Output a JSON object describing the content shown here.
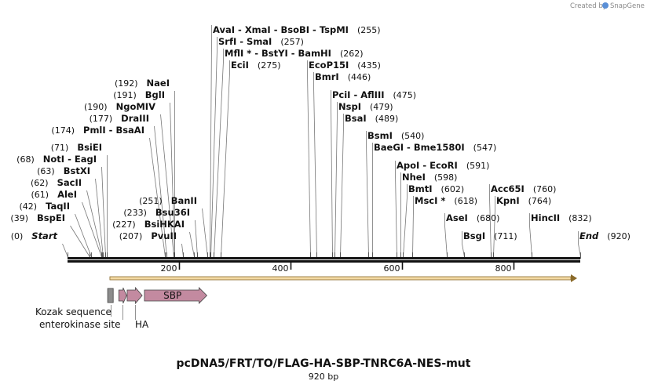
{
  "credit": {
    "text": "Created by",
    "brand": "SnapGene",
    "logo_icon": "snapgene-logo-icon"
  },
  "title": "pcDNA5/FRT/TO/FLAG-HA-SBP-TNRC6A-NES-mut",
  "subtitle": "920 bp",
  "sequence_length": 920,
  "ticks": [
    200,
    400,
    600,
    800
  ],
  "enzyme_labels": [
    {
      "id": "avaI",
      "parts": [
        "AvaI",
        "XmaI",
        "BsoBI",
        "TspMI"
      ],
      "pos": "(255)",
      "site": 255
    },
    {
      "id": "srfI",
      "parts": [
        "SrfI",
        "SmaI"
      ],
      "pos": "(257)",
      "site": 257
    },
    {
      "id": "mflI",
      "parts": [
        "MflI *",
        "BstYI",
        "BamHI"
      ],
      "pos": "(262)",
      "site": 262
    },
    {
      "id": "eciI",
      "parts": [
        "EciI"
      ],
      "pos": "(275)",
      "site": 275
    },
    {
      "id": "ecoP15I",
      "parts": [
        "EcoP15I"
      ],
      "pos": "(435)",
      "site": 435
    },
    {
      "id": "bmrI",
      "parts": [
        "BmrI"
      ],
      "pos": "(446)",
      "site": 446
    },
    {
      "id": "pciI",
      "parts": [
        "PciI",
        "AflIII"
      ],
      "pos": "(475)",
      "site": 475
    },
    {
      "id": "nspI",
      "parts": [
        "NspI"
      ],
      "pos": "(479)",
      "site": 479
    },
    {
      "id": "bsaI",
      "parts": [
        "BsaI"
      ],
      "pos": "(489)",
      "site": 489
    },
    {
      "id": "bsmI",
      "parts": [
        "BsmI"
      ],
      "pos": "(540)",
      "site": 540
    },
    {
      "id": "baeGI",
      "parts": [
        "BaeGI",
        "Bme1580I"
      ],
      "pos": "(547)",
      "site": 547
    },
    {
      "id": "apoI",
      "parts": [
        "ApoI",
        "EcoRI"
      ],
      "pos": "(591)",
      "site": 591
    },
    {
      "id": "nheI",
      "parts": [
        "NheI"
      ],
      "pos": "(598)",
      "site": 598
    },
    {
      "id": "bmtI",
      "parts": [
        "BmtI"
      ],
      "pos": "(602)",
      "site": 602
    },
    {
      "id": "mscI",
      "parts": [
        "MscI *"
      ],
      "pos": "(618)",
      "site": 618
    },
    {
      "id": "aseI",
      "parts": [
        "AseI"
      ],
      "pos": "(680)",
      "site": 680
    },
    {
      "id": "bsgI",
      "parts": [
        "BsgI"
      ],
      "pos": "(711)",
      "site": 711
    },
    {
      "id": "acc65I",
      "parts": [
        "Acc65I"
      ],
      "pos": "(760)",
      "site": 760
    },
    {
      "id": "kpnI",
      "parts": [
        "KpnI"
      ],
      "pos": "(764)",
      "site": 764
    },
    {
      "id": "hincII",
      "parts": [
        "HincII"
      ],
      "pos": "(832)",
      "site": 832
    },
    {
      "id": "end",
      "parts": [
        "End"
      ],
      "pos": "(920)",
      "site": 920,
      "italic": true
    },
    {
      "id": "naeI",
      "parts": [
        "NaeI"
      ],
      "pos": "(192)",
      "site": 192
    },
    {
      "id": "bglI",
      "parts": [
        "BglI"
      ],
      "pos": "(191)",
      "site": 191
    },
    {
      "id": "ngoMIV",
      "parts": [
        "NgoMIV"
      ],
      "pos": "(190)",
      "site": 190
    },
    {
      "id": "draIII",
      "parts": [
        "DraIII"
      ],
      "pos": "(177)",
      "site": 177
    },
    {
      "id": "pmlI",
      "parts": [
        "PmlI",
        "BsaAI"
      ],
      "pos": "(174)",
      "site": 174
    },
    {
      "id": "bsiEI",
      "parts": [
        "BsiEI"
      ],
      "pos": "(71)",
      "site": 71
    },
    {
      "id": "notI",
      "parts": [
        "NotI",
        "EagI"
      ],
      "pos": "(68)",
      "site": 68
    },
    {
      "id": "bstXI",
      "parts": [
        "BstXI"
      ],
      "pos": "(63)",
      "site": 63
    },
    {
      "id": "sacII",
      "parts": [
        "SacII"
      ],
      "pos": "(62)",
      "site": 62
    },
    {
      "id": "aleI",
      "parts": [
        "AleI"
      ],
      "pos": "(61)",
      "site": 61
    },
    {
      "id": "taqII",
      "parts": [
        "TaqII"
      ],
      "pos": "(42)",
      "site": 42
    },
    {
      "id": "bspEI",
      "parts": [
        "BspEI"
      ],
      "pos": "(39)",
      "site": 39
    },
    {
      "id": "start",
      "parts": [
        "Start"
      ],
      "pos": "(0)",
      "site": 0,
      "italic": true
    },
    {
      "id": "banII",
      "parts": [
        "BanII"
      ],
      "pos": "(251)",
      "site": 251
    },
    {
      "id": "bsu36I",
      "parts": [
        "Bsu36I"
      ],
      "pos": "(233)",
      "site": 233
    },
    {
      "id": "bsiHKAI",
      "parts": [
        "BsiHKAI"
      ],
      "pos": "(227)",
      "site": 227
    },
    {
      "id": "pvuII",
      "parts": [
        "PvuII"
      ],
      "pos": "(207)",
      "site": 207
    }
  ],
  "features": [
    {
      "id": "kozak",
      "label": "Kozak sequence",
      "start": 72,
      "end": 82,
      "shape": "box",
      "color": "#8c8c8c"
    },
    {
      "id": "enterokinase",
      "label": "enterokinase site",
      "start": 92,
      "end": 106,
      "shape": "arrow",
      "color": "#c38aa0"
    },
    {
      "id": "ha",
      "label": "HA",
      "start": 107,
      "end": 134,
      "shape": "arrow",
      "color": "#c38aa0"
    },
    {
      "id": "sbp",
      "label": "SBP",
      "start": 138,
      "end": 250,
      "shape": "arrow",
      "color": "#c38aa0"
    }
  ],
  "orf": {
    "start": 76,
    "end": 920,
    "direction": "forward",
    "color": "#f3d9a3",
    "edge_color": "#8a6a2a"
  }
}
